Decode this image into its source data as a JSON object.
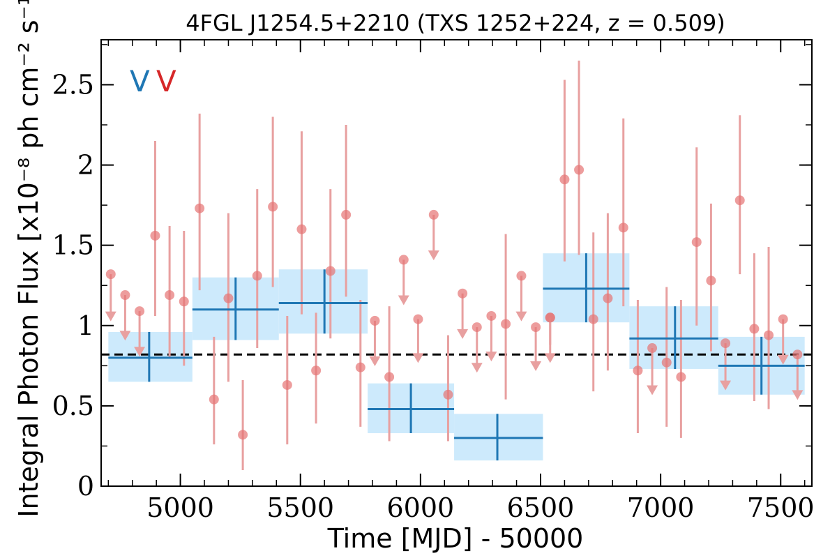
{
  "chart_data": {
    "type": "scatter",
    "title": "4FGL J1254.5+2210 (TXS 1252+224, z = 0.509)",
    "xlabel": "Time [MJD] - 50000",
    "ylabel": "Integral Photon Flux [x10⁻⁸ ph cm⁻² s⁻¹]",
    "xlim": [
      4670,
      7630
    ],
    "ylim": [
      0,
      2.78
    ],
    "xticks": [
      5000,
      5500,
      6000,
      6500,
      7000,
      7500
    ],
    "xtick_labels": [
      "5000",
      "5500",
      "6000",
      "6500",
      "7000",
      "7500"
    ],
    "yticks": [
      0,
      0.5,
      1,
      1.5,
      2,
      2.5
    ],
    "ytick_labels": [
      "0",
      "0.5",
      "1",
      "1.5",
      "2",
      "2.5"
    ],
    "reference_line": {
      "y": 0.82,
      "style": "dashed",
      "color": "#000000"
    },
    "legend": {
      "placement": "top-left",
      "entries": [
        {
          "label": "V",
          "color": "#1f77b4"
        },
        {
          "label": "V",
          "color": "#d62728"
        }
      ]
    },
    "colors": {
      "binned": "#1f77b4",
      "binned_band": "#cdeafc",
      "short": "#e57373",
      "short_bar": "#e8a0a0"
    },
    "series": [
      {
        "kind": "binned",
        "points": [
          {
            "x": 4870,
            "xlo": 4700,
            "xhi": 5050,
            "y": 0.8,
            "ylo": 0.65,
            "yhi": 0.96
          },
          {
            "x": 5230,
            "xlo": 5050,
            "xhi": 5410,
            "y": 1.1,
            "ylo": 0.91,
            "yhi": 1.3
          },
          {
            "x": 5600,
            "xlo": 5410,
            "xhi": 5780,
            "y": 1.14,
            "ylo": 0.95,
            "yhi": 1.35
          },
          {
            "x": 5960,
            "xlo": 5780,
            "xhi": 6140,
            "y": 0.48,
            "ylo": 0.33,
            "yhi": 0.64
          },
          {
            "x": 6320,
            "xlo": 6140,
            "xhi": 6510,
            "y": 0.3,
            "ylo": 0.16,
            "yhi": 0.45
          },
          {
            "x": 6690,
            "xlo": 6510,
            "xhi": 6870,
            "y": 1.23,
            "ylo": 1.02,
            "yhi": 1.45
          },
          {
            "x": 7060,
            "xlo": 6870,
            "xhi": 7240,
            "y": 0.92,
            "ylo": 0.73,
            "yhi": 1.12
          },
          {
            "x": 7420,
            "xlo": 7240,
            "xhi": 7600,
            "y": 0.75,
            "ylo": 0.57,
            "yhi": 0.93
          }
        ]
      },
      {
        "kind": "detections",
        "points": [
          {
            "x": 4895,
            "y": 1.56,
            "ylo": 1.06,
            "yhi": 2.15
          },
          {
            "x": 4955,
            "y": 1.19,
            "ylo": 0.8,
            "yhi": 1.62
          },
          {
            "x": 5015,
            "y": 1.15,
            "ylo": 0.75,
            "yhi": 1.59
          },
          {
            "x": 5080,
            "y": 1.73,
            "ylo": 1.22,
            "yhi": 2.32
          },
          {
            "x": 5140,
            "y": 0.54,
            "ylo": 0.26,
            "yhi": 0.93
          },
          {
            "x": 5200,
            "y": 1.17,
            "ylo": 0.65,
            "yhi": 1.7
          },
          {
            "x": 5260,
            "y": 0.32,
            "ylo": 0.1,
            "yhi": 0.66
          },
          {
            "x": 5320,
            "y": 1.31,
            "ylo": 0.86,
            "yhi": 1.85
          },
          {
            "x": 5385,
            "y": 1.74,
            "ylo": 1.24,
            "yhi": 2.3
          },
          {
            "x": 5445,
            "y": 0.63,
            "ylo": 0.26,
            "yhi": 1.06
          },
          {
            "x": 5505,
            "y": 1.6,
            "ylo": 1.07,
            "yhi": 2.21
          },
          {
            "x": 5565,
            "y": 0.72,
            "ylo": 0.39,
            "yhi": 1.08
          },
          {
            "x": 5625,
            "y": 1.34,
            "ylo": 0.92,
            "yhi": 1.85
          },
          {
            "x": 5690,
            "y": 1.69,
            "ylo": 1.18,
            "yhi": 2.25
          },
          {
            "x": 5750,
            "y": 0.74,
            "ylo": 0.37,
            "yhi": 1.16
          },
          {
            "x": 5870,
            "y": 0.68,
            "ylo": 0.28,
            "yhi": 1.12
          },
          {
            "x": 6115,
            "y": 0.57,
            "ylo": 0.28,
            "yhi": 0.94
          },
          {
            "x": 6355,
            "y": 1.01,
            "ylo": 0.54,
            "yhi": 1.57
          },
          {
            "x": 6540,
            "y": 1.05,
            "ylo": 0.88,
            "yhi": 1.05
          },
          {
            "x": 6600,
            "y": 1.91,
            "ylo": 1.4,
            "yhi": 2.53
          },
          {
            "x": 6660,
            "y": 1.97,
            "ylo": 1.44,
            "yhi": 2.65
          },
          {
            "x": 6720,
            "y": 1.04,
            "ylo": 0.59,
            "yhi": 1.58
          },
          {
            "x": 6780,
            "y": 1.17,
            "ylo": 0.72,
            "yhi": 1.7
          },
          {
            "x": 6845,
            "y": 1.61,
            "ylo": 1.12,
            "yhi": 2.29
          },
          {
            "x": 6905,
            "y": 0.72,
            "ylo": 0.33,
            "yhi": 1.16
          },
          {
            "x": 7025,
            "y": 0.77,
            "ylo": 0.37,
            "yhi": 1.24
          },
          {
            "x": 7085,
            "y": 0.68,
            "ylo": 0.3,
            "yhi": 1.16
          },
          {
            "x": 7150,
            "y": 1.52,
            "ylo": 1.0,
            "yhi": 2.11
          },
          {
            "x": 7210,
            "y": 1.28,
            "ylo": 0.84,
            "yhi": 1.76
          },
          {
            "x": 7330,
            "y": 1.78,
            "ylo": 1.32,
            "yhi": 2.31
          },
          {
            "x": 7390,
            "y": 0.98,
            "ylo": 0.53,
            "yhi": 1.45
          },
          {
            "x": 7450,
            "y": 0.94,
            "ylo": 0.48,
            "yhi": 1.49
          }
        ]
      },
      {
        "kind": "upper_limits",
        "points": [
          {
            "x": 4710,
            "y": 1.32,
            "arrow": 1.04
          },
          {
            "x": 4770,
            "y": 1.19,
            "arrow": 0.92
          },
          {
            "x": 4830,
            "y": 1.09,
            "arrow": 0.82
          },
          {
            "x": 5810,
            "y": 1.03,
            "arrow": 0.76
          },
          {
            "x": 5930,
            "y": 1.41,
            "arrow": 1.14
          },
          {
            "x": 5990,
            "y": 1.04,
            "arrow": 0.78
          },
          {
            "x": 6055,
            "y": 1.69,
            "arrow": 1.42
          },
          {
            "x": 6175,
            "y": 1.2,
            "arrow": 0.93
          },
          {
            "x": 6235,
            "y": 0.99,
            "arrow": 0.72
          },
          {
            "x": 6295,
            "y": 1.06,
            "arrow": 0.79
          },
          {
            "x": 6420,
            "y": 1.31,
            "arrow": 1.04
          },
          {
            "x": 6480,
            "y": 0.99,
            "arrow": 0.73
          },
          {
            "x": 6540,
            "y": 1.05,
            "arrow": 0.78
          },
          {
            "x": 6965,
            "y": 0.86,
            "arrow": 0.58
          },
          {
            "x": 7270,
            "y": 0.89,
            "arrow": 0.61
          },
          {
            "x": 7510,
            "y": 1.04,
            "arrow": 0.77
          },
          {
            "x": 7570,
            "y": 0.82,
            "arrow": 0.55
          }
        ]
      }
    ]
  }
}
